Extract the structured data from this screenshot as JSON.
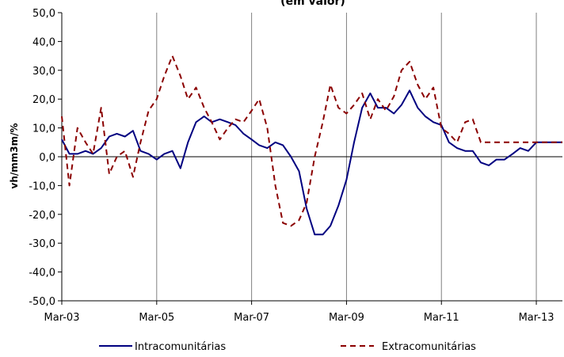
{
  "chart_data": {
    "type": "line",
    "title": "(em valor)",
    "xlabel": "",
    "ylabel": "vh/mm3m/%",
    "ylim": [
      -50,
      50
    ],
    "yticks": [
      "50,0",
      "40,0",
      "30,0",
      "20,0",
      "10,0",
      "0,0",
      "-10,0",
      "-20,0",
      "-30,0",
      "-40,0",
      "-50,0"
    ],
    "ytick_values": [
      50,
      40,
      30,
      20,
      10,
      0,
      -10,
      -20,
      -30,
      -40,
      -50
    ],
    "xticks": [
      "Mar-03",
      "Mar-05",
      "Mar-07",
      "Mar-09",
      "Mar-11",
      "Mar-13"
    ],
    "xtick_values": [
      2003.17,
      2005.17,
      2007.17,
      2009.17,
      2011.17,
      2013.17
    ],
    "xlim": [
      2003.17,
      2013.72
    ],
    "vertical_gridlines": true,
    "horizontal_gridlines": false,
    "legend_position": "bottom",
    "series": [
      {
        "name": "Intracomunitárias",
        "color": "#000080",
        "style": "solid",
        "x": [
          2003.17,
          2003.33,
          2003.5,
          2003.67,
          2003.83,
          2004.0,
          2004.17,
          2004.33,
          2004.5,
          2004.67,
          2004.83,
          2005.0,
          2005.17,
          2005.33,
          2005.5,
          2005.67,
          2005.83,
          2006.0,
          2006.17,
          2006.33,
          2006.5,
          2006.67,
          2006.83,
          2007.0,
          2007.17,
          2007.33,
          2007.5,
          2007.67,
          2007.83,
          2008.0,
          2008.17,
          2008.33,
          2008.5,
          2008.67,
          2008.83,
          2009.0,
          2009.17,
          2009.33,
          2009.5,
          2009.67,
          2009.83,
          2010.0,
          2010.17,
          2010.33,
          2010.5,
          2010.67,
          2010.83,
          2011.0,
          2011.17,
          2011.33,
          2011.5,
          2011.67,
          2011.83,
          2012.0,
          2012.17,
          2012.33,
          2012.5,
          2012.67,
          2012.83,
          2013.0,
          2013.17,
          2013.33,
          2013.5,
          2013.67,
          2013.72
        ],
        "values": [
          6,
          1,
          1,
          2,
          1,
          3,
          7,
          8,
          7,
          9,
          2,
          1,
          -1,
          1,
          2,
          -4,
          5,
          12,
          14,
          12,
          13,
          12,
          11,
          8,
          6,
          4,
          3,
          5,
          4,
          0,
          -5,
          -18,
          -27,
          -27,
          -24,
          -17,
          -8,
          5,
          17,
          22,
          17,
          17,
          15,
          18,
          23,
          17,
          14,
          12,
          11,
          5,
          3,
          2,
          2,
          -2,
          -3,
          -1,
          -1,
          1,
          3,
          2,
          5,
          5,
          5,
          5,
          5
        ],
        "values_count_note": ""
      },
      {
        "name": "Extracomunitárias",
        "color": "#8b0000",
        "style": "dashed",
        "x": [
          2003.17,
          2003.33,
          2003.5,
          2003.67,
          2003.83,
          2004.0,
          2004.17,
          2004.33,
          2004.5,
          2004.67,
          2004.83,
          2005.0,
          2005.17,
          2005.33,
          2005.5,
          2005.67,
          2005.83,
          2006.0,
          2006.17,
          2006.33,
          2006.5,
          2006.67,
          2006.83,
          2007.0,
          2007.17,
          2007.33,
          2007.5,
          2007.67,
          2007.83,
          2008.0,
          2008.17,
          2008.33,
          2008.5,
          2008.67,
          2008.83,
          2009.0,
          2009.17,
          2009.33,
          2009.5,
          2009.67,
          2009.83,
          2010.0,
          2010.17,
          2010.33,
          2010.5,
          2010.67,
          2010.83,
          2011.0,
          2011.17,
          2011.33,
          2011.5,
          2011.67,
          2011.83,
          2012.0,
          2012.17,
          2012.33,
          2012.5,
          2012.67,
          2012.83,
          2013.0,
          2013.17,
          2013.33,
          2013.5,
          2013.67,
          2013.72
        ],
        "values": [
          14,
          -10,
          10,
          5,
          1,
          17,
          -6,
          0,
          2,
          -7,
          5,
          16,
          20,
          28,
          35,
          28,
          20,
          24,
          17,
          12,
          6,
          10,
          13,
          12,
          16,
          20,
          10,
          -10,
          -23,
          -24,
          -22,
          -16,
          0,
          12,
          25,
          17,
          15,
          18,
          22,
          13,
          20,
          16,
          21,
          30,
          33,
          25,
          20,
          24,
          10,
          8,
          5,
          12,
          13,
          5,
          5,
          5,
          5,
          5,
          5,
          5,
          5,
          5,
          5,
          5,
          5
        ]
      }
    ]
  }
}
